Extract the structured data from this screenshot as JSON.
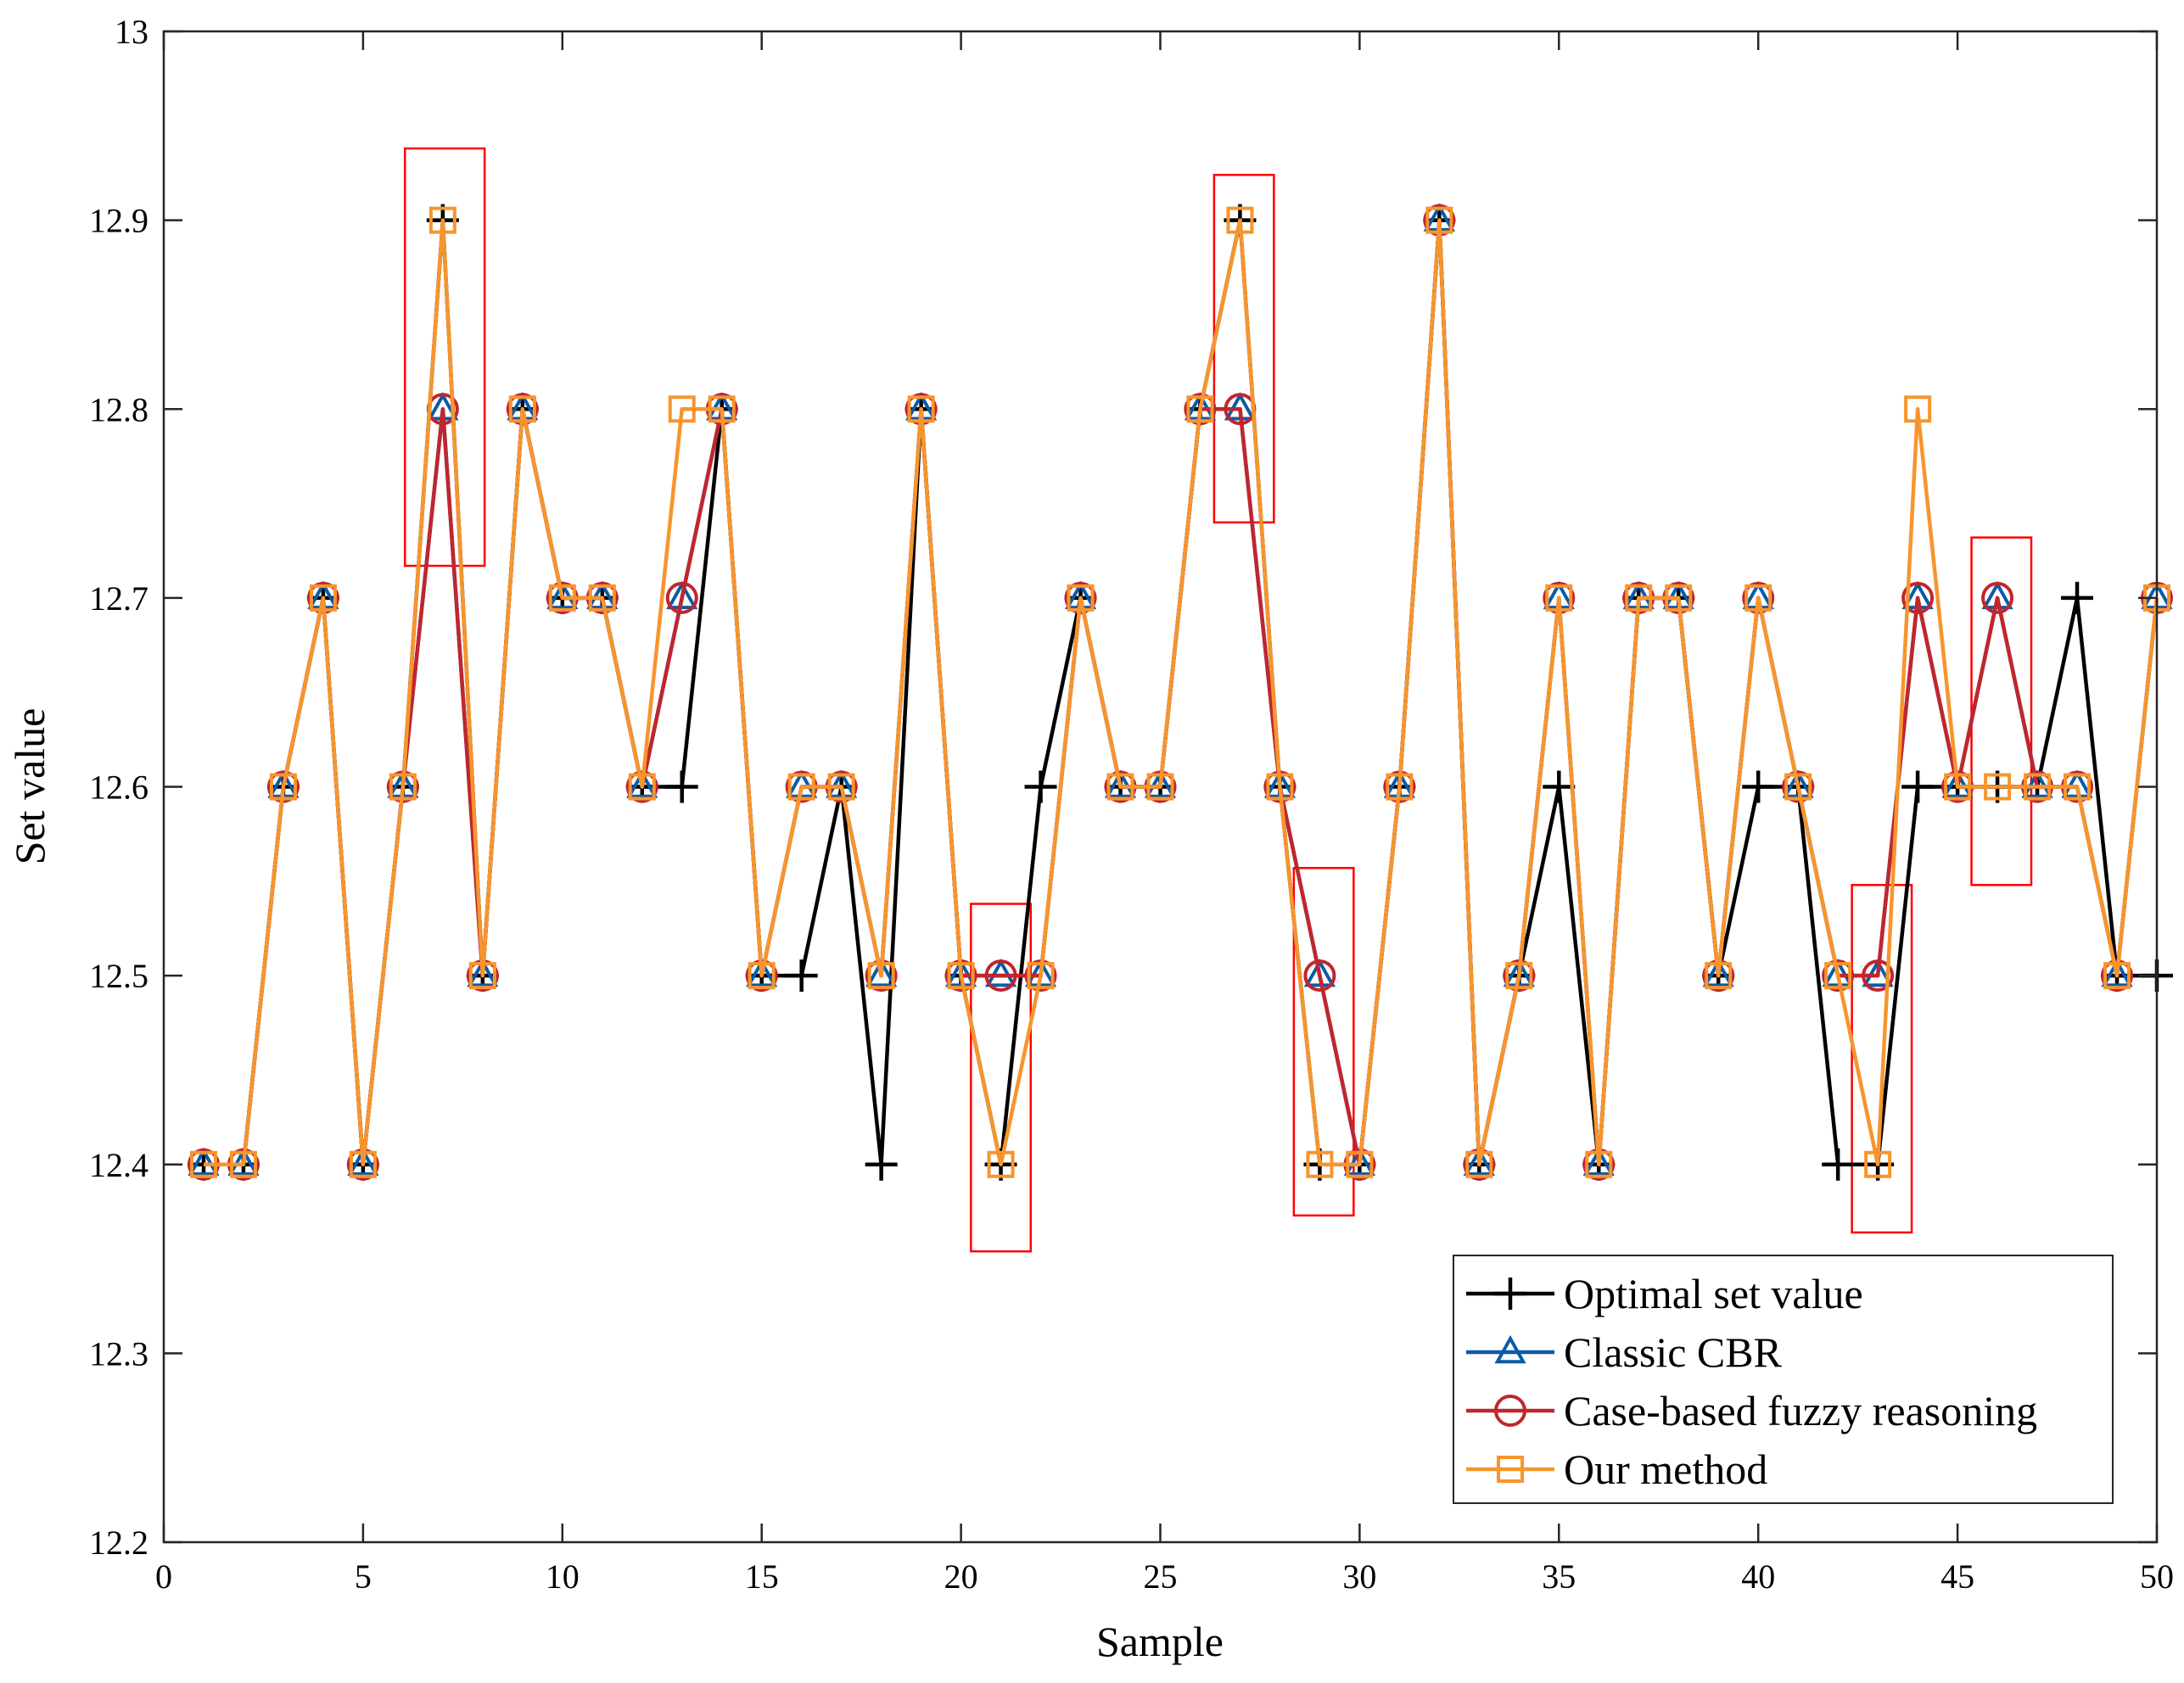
{
  "chart_data": {
    "type": "line",
    "title": "",
    "xlabel": "Sample",
    "ylabel": "Set value",
    "xlim": [
      0,
      50
    ],
    "ylim": [
      12.2,
      13
    ],
    "xticks": [
      0,
      5,
      10,
      15,
      20,
      25,
      30,
      35,
      40,
      45,
      50
    ],
    "xtick_labels": [
      "0",
      "5",
      "10",
      "15",
      "20",
      "25",
      "30",
      "35",
      "40",
      "45",
      "50"
    ],
    "yticks": [
      12.2,
      12.3,
      12.4,
      12.5,
      12.6,
      12.7,
      12.8,
      12.9,
      13
    ],
    "ytick_labels": [
      "12.2",
      "12.3",
      "12.4",
      "12.5",
      "12.6",
      "12.7",
      "12.8",
      "12.9",
      "13"
    ],
    "grid": false,
    "legend_position": "bottom-right",
    "x": [
      1,
      2,
      3,
      4,
      5,
      6,
      7,
      8,
      9,
      10,
      11,
      12,
      13,
      14,
      15,
      16,
      17,
      18,
      19,
      20,
      21,
      22,
      23,
      24,
      25,
      26,
      27,
      28,
      29,
      30,
      31,
      32,
      33,
      34,
      35,
      36,
      37,
      38,
      39,
      40,
      41,
      42,
      43,
      44,
      45,
      46,
      47,
      48,
      49,
      50
    ],
    "series": [
      {
        "name": "Optimal set value",
        "color": "#000000",
        "marker": "plus",
        "values": [
          12.4,
          12.4,
          12.6,
          12.7,
          12.4,
          12.6,
          12.9,
          12.5,
          12.8,
          12.7,
          12.7,
          12.6,
          12.6,
          12.8,
          12.5,
          12.5,
          12.6,
          12.4,
          12.8,
          12.5,
          12.4,
          12.6,
          12.7,
          12.6,
          12.6,
          12.8,
          12.9,
          12.6,
          12.4,
          12.4,
          12.6,
          12.9,
          12.4,
          12.5,
          12.6,
          12.4,
          12.7,
          12.7,
          12.5,
          12.6,
          12.6,
          12.4,
          12.4,
          12.6,
          12.6,
          12.6,
          12.6,
          12.7,
          12.5,
          12.5
        ]
      },
      {
        "name": "Classic CBR",
        "color": "#0b5aa8",
        "marker": "triangle",
        "values": [
          12.4,
          12.4,
          12.6,
          12.7,
          12.4,
          12.6,
          12.8,
          12.5,
          12.8,
          12.7,
          12.7,
          12.6,
          12.7,
          12.8,
          12.5,
          12.6,
          12.6,
          12.5,
          12.8,
          12.5,
          12.5,
          12.5,
          12.7,
          12.6,
          12.6,
          12.8,
          12.8,
          12.6,
          12.5,
          12.4,
          12.6,
          12.9,
          12.4,
          12.5,
          12.7,
          12.4,
          12.7,
          12.7,
          12.5,
          12.7,
          12.6,
          12.5,
          12.5,
          12.7,
          12.6,
          12.7,
          12.6,
          12.6,
          12.5,
          12.7
        ]
      },
      {
        "name": "Case-based fuzzy reasoning",
        "color": "#c0262d",
        "marker": "circle",
        "values": [
          12.4,
          12.4,
          12.6,
          12.7,
          12.4,
          12.6,
          12.8,
          12.5,
          12.8,
          12.7,
          12.7,
          12.6,
          12.7,
          12.8,
          12.5,
          12.6,
          12.6,
          12.5,
          12.8,
          12.5,
          12.5,
          12.5,
          12.7,
          12.6,
          12.6,
          12.8,
          12.8,
          12.6,
          12.5,
          12.4,
          12.6,
          12.9,
          12.4,
          12.5,
          12.7,
          12.4,
          12.7,
          12.7,
          12.5,
          12.7,
          12.6,
          12.5,
          12.5,
          12.7,
          12.6,
          12.7,
          12.6,
          12.6,
          12.5,
          12.7
        ]
      },
      {
        "name": "Our method",
        "color": "#f7952d",
        "marker": "square",
        "values": [
          12.4,
          12.4,
          12.6,
          12.7,
          12.4,
          12.6,
          12.9,
          12.5,
          12.8,
          12.7,
          12.7,
          12.6,
          12.8,
          12.8,
          12.5,
          12.6,
          12.6,
          12.5,
          12.8,
          12.5,
          12.4,
          12.5,
          12.7,
          12.6,
          12.6,
          12.8,
          12.9,
          12.6,
          12.4,
          12.4,
          12.6,
          12.9,
          12.4,
          12.5,
          12.7,
          12.4,
          12.7,
          12.7,
          12.5,
          12.7,
          12.6,
          12.5,
          12.4,
          12.8,
          12.6,
          12.6,
          12.6,
          12.6,
          12.5,
          12.7
        ]
      }
    ],
    "annotations": {
      "type": "highlight-box",
      "color": "#ff0000",
      "boxes": [
        {
          "x": [
            6.05,
            8.05
          ],
          "y": [
            12.717,
            12.938
          ]
        },
        {
          "x": [
            20.25,
            21.75
          ],
          "y": [
            12.354,
            12.538
          ]
        },
        {
          "x": [
            26.35,
            27.85
          ],
          "y": [
            12.74,
            12.924
          ]
        },
        {
          "x": [
            28.35,
            29.85
          ],
          "y": [
            12.373,
            12.557
          ]
        },
        {
          "x": [
            42.35,
            43.85
          ],
          "y": [
            12.364,
            12.548
          ]
        },
        {
          "x": [
            45.35,
            46.85
          ],
          "y": [
            12.548,
            12.732
          ]
        }
      ]
    }
  }
}
